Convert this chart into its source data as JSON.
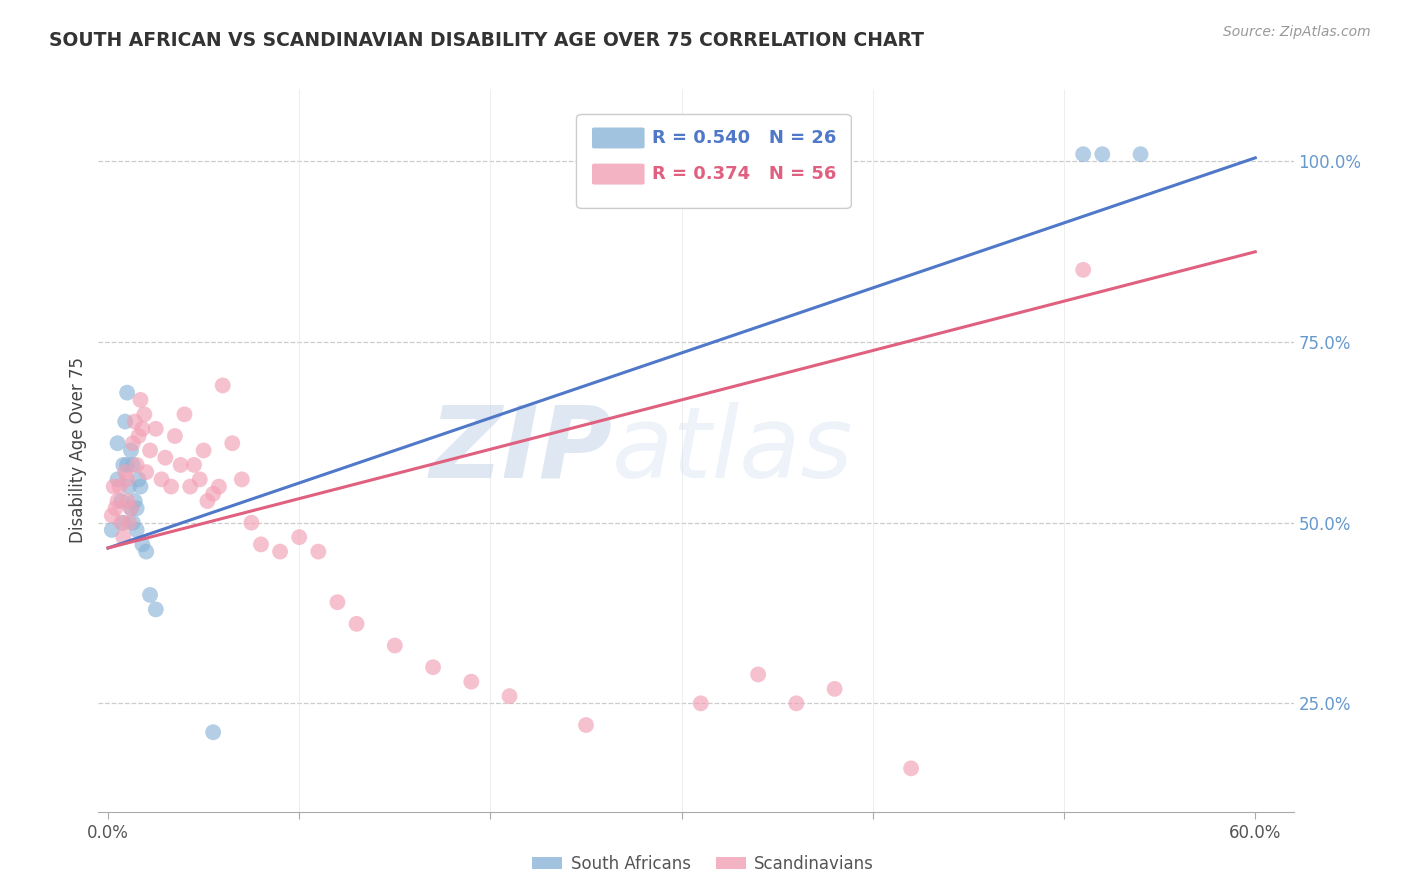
{
  "title": "SOUTH AFRICAN VS SCANDINAVIAN DISABILITY AGE OVER 75 CORRELATION CHART",
  "source": "Source: ZipAtlas.com",
  "ylabel": "Disability Age Over 75",
  "xlabel_ticks_shown": [
    "0.0%",
    "60.0%"
  ],
  "xlabel_vals_shown": [
    0.0,
    0.6
  ],
  "xlabel_minor_vals": [
    0.1,
    0.2,
    0.3,
    0.4,
    0.5
  ],
  "ylabel_ticks": [
    "25.0%",
    "50.0%",
    "75.0%",
    "100.0%"
  ],
  "ylabel_vals": [
    0.25,
    0.5,
    0.75,
    1.0
  ],
  "xlim": [
    -0.005,
    0.62
  ],
  "ylim": [
    0.1,
    1.1
  ],
  "blue_color": "#8AB4D8",
  "pink_color": "#F2A0B5",
  "blue_line_color": "#5078C8",
  "pink_line_color": "#E06080",
  "right_axis_color": "#6699CC",
  "legend_label_blue": "South Africans",
  "legend_label_pink": "Scandinavians",
  "watermark_zip": "ZIP",
  "watermark_atlas": "atlas",
  "sa_x": [
    0.002,
    0.005,
    0.005,
    0.007,
    0.008,
    0.008,
    0.009,
    0.01,
    0.01,
    0.011,
    0.012,
    0.012,
    0.013,
    0.013,
    0.014,
    0.015,
    0.015,
    0.016,
    0.017,
    0.018,
    0.02,
    0.022,
    0.025,
    0.055,
    0.51,
    0.52,
    0.54
  ],
  "sa_y": [
    0.49,
    0.56,
    0.61,
    0.53,
    0.58,
    0.5,
    0.64,
    0.68,
    0.58,
    0.55,
    0.6,
    0.52,
    0.58,
    0.5,
    0.53,
    0.52,
    0.49,
    0.56,
    0.55,
    0.47,
    0.46,
    0.4,
    0.38,
    0.21,
    1.01,
    1.01,
    1.01
  ],
  "sc_x": [
    0.002,
    0.003,
    0.004,
    0.005,
    0.006,
    0.007,
    0.008,
    0.009,
    0.01,
    0.01,
    0.011,
    0.012,
    0.013,
    0.014,
    0.015,
    0.016,
    0.017,
    0.018,
    0.019,
    0.02,
    0.022,
    0.025,
    0.028,
    0.03,
    0.033,
    0.035,
    0.038,
    0.04,
    0.043,
    0.045,
    0.048,
    0.05,
    0.052,
    0.055,
    0.058,
    0.06,
    0.065,
    0.07,
    0.075,
    0.08,
    0.09,
    0.1,
    0.11,
    0.12,
    0.13,
    0.15,
    0.17,
    0.19,
    0.21,
    0.25,
    0.31,
    0.34,
    0.36,
    0.38,
    0.42,
    0.51
  ],
  "sc_y": [
    0.51,
    0.55,
    0.52,
    0.53,
    0.55,
    0.5,
    0.48,
    0.57,
    0.53,
    0.56,
    0.5,
    0.52,
    0.61,
    0.64,
    0.58,
    0.62,
    0.67,
    0.63,
    0.65,
    0.57,
    0.6,
    0.63,
    0.56,
    0.59,
    0.55,
    0.62,
    0.58,
    0.65,
    0.55,
    0.58,
    0.56,
    0.6,
    0.53,
    0.54,
    0.55,
    0.69,
    0.61,
    0.56,
    0.5,
    0.47,
    0.46,
    0.48,
    0.46,
    0.39,
    0.36,
    0.33,
    0.3,
    0.28,
    0.26,
    0.22,
    0.25,
    0.29,
    0.25,
    0.27,
    0.16,
    0.85
  ]
}
